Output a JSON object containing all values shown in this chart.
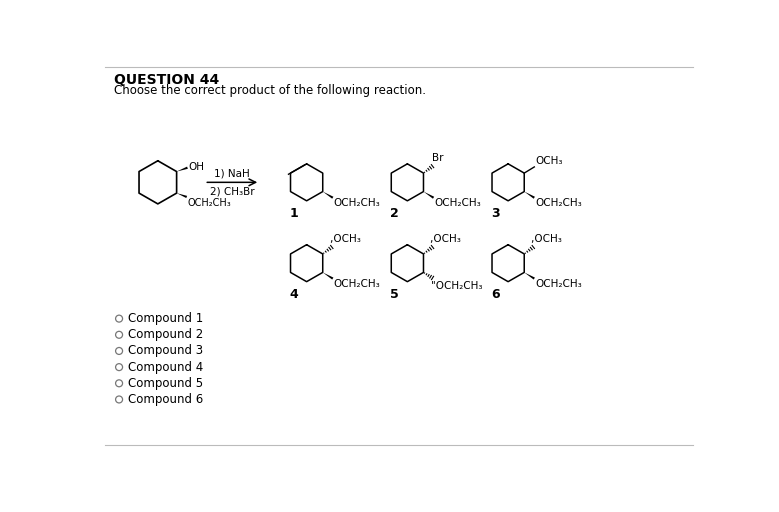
{
  "title": "QUESTION 44",
  "subtitle": "Choose the correct product of the following reaction.",
  "bg_color": "#ffffff",
  "text_color": "#000000",
  "answer_choices": [
    "Compound 1",
    "Compound 2",
    "Compound 3",
    "Compound 4",
    "Compound 5",
    "Compound 6"
  ],
  "font_size_title": 10,
  "font_size_body": 8.5,
  "font_size_chem": 7.5,
  "font_size_label": 9
}
